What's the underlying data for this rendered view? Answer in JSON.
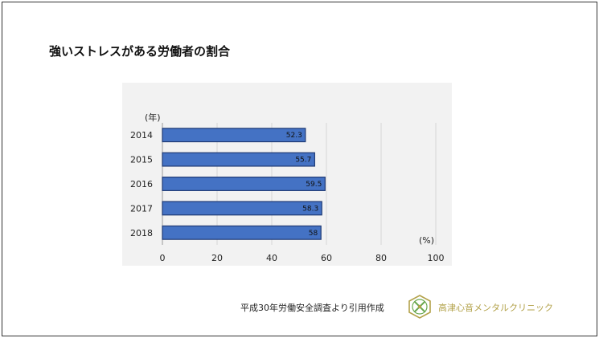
{
  "slide": {
    "title": "強いストレスがある労働者の割合",
    "source": "平成30年労働安全調査より引用作成",
    "clinic_name": "高津心音メンタルクリニック"
  },
  "colors": {
    "bar_fill": "#4472c4",
    "bar_border": "#1f3a75",
    "panel_bg": "#f2f2f2",
    "logo_gold": "#b3a24a",
    "logo_green": "#6aa84f"
  },
  "icons": {
    "logo": "clinic-logo-icon"
  },
  "chart_data": {
    "type": "bar",
    "orientation": "horizontal",
    "title": "",
    "categories": [
      "2014",
      "2015",
      "2016",
      "2017",
      "2018"
    ],
    "values": [
      52.3,
      55.7,
      59.5,
      58.3,
      58
    ],
    "value_labels": [
      "52.3",
      "55.7",
      "59.5",
      "58.3",
      "58"
    ],
    "xlabel": "(%)",
    "ylabel": "(年)",
    "xlim": [
      0,
      100
    ],
    "xticks": [
      0,
      20,
      40,
      60,
      80,
      100
    ],
    "grid": true,
    "legend": "none"
  }
}
